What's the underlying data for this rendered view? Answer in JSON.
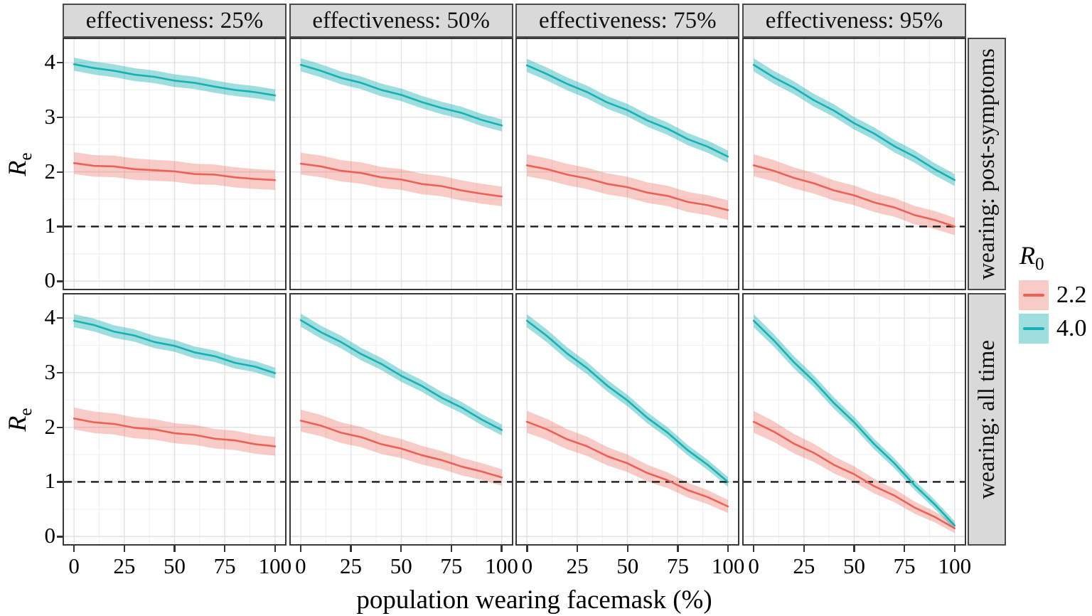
{
  "figure": {
    "y_axis_title": {
      "base": "R",
      "sub": "e"
    },
    "x_axis_title": "population wearing facemask (%)",
    "legend": {
      "title": {
        "base": "R",
        "sub": "0"
      },
      "entries": [
        {
          "label": "2.2",
          "line_color": "#ec6156",
          "fill_color": "rgba(236,97,86,0.33)"
        },
        {
          "label": "4.0",
          "line_color": "#17b1b3",
          "fill_color": "rgba(23,177,179,0.42)"
        }
      ]
    },
    "colors": {
      "strip_background": "#d9d9d9",
      "panel_border": "#383838",
      "major_grid": "#e2e2e2",
      "minor_grid": "#f1f1f1",
      "reference_line": "#1a1a1a"
    }
  },
  "chart_data": {
    "type": "line",
    "title": "",
    "xlabel": "population wearing facemask (%)",
    "ylabel": "Re",
    "legend_title": "R0",
    "legend_position": "right",
    "grid": true,
    "col_facets": [
      "effectiveness: 25%",
      "effectiveness: 50%",
      "effectiveness: 75%",
      "effectiveness: 95%"
    ],
    "row_facets": [
      "wearing: post-symptoms",
      "wearing: all time"
    ],
    "x": [
      0,
      10,
      20,
      30,
      40,
      50,
      60,
      70,
      80,
      90,
      100
    ],
    "x_ticks": [
      0,
      25,
      50,
      75,
      100
    ],
    "y_ticks": [
      0,
      1,
      2,
      3,
      4
    ],
    "x_minor_ticks": [
      12.5,
      37.5,
      62.5,
      87.5
    ],
    "y_minor_ticks": [
      0.5,
      1.5,
      2.5,
      3.5
    ],
    "xlim": [
      -5,
      105
    ],
    "ylim": [
      -0.14,
      4.43
    ],
    "reference_line_y": 1,
    "series_names": [
      "2.2",
      "4.0"
    ],
    "panels": [
      {
        "row": "wearing: post-symptoms",
        "col": "effectiveness: 25%",
        "series": [
          {
            "name": "2.2",
            "y": [
              2.16,
              2.11,
              2.1,
              2.05,
              2.03,
              2.01,
              1.96,
              1.95,
              1.9,
              1.87,
              1.85
            ],
            "band": [
              0.2,
              0.18
            ]
          },
          {
            "name": "4.0",
            "y": [
              3.97,
              3.9,
              3.85,
              3.78,
              3.74,
              3.67,
              3.63,
              3.56,
              3.5,
              3.46,
              3.4
            ],
            "band": [
              0.12,
              0.11
            ]
          }
        ]
      },
      {
        "row": "wearing: post-symptoms",
        "col": "effectiveness: 50%",
        "series": [
          {
            "name": "2.2",
            "y": [
              2.15,
              2.1,
              2.02,
              1.98,
              1.9,
              1.86,
              1.78,
              1.74,
              1.66,
              1.6,
              1.55
            ],
            "band": [
              0.2,
              0.18
            ]
          },
          {
            "name": "4.0",
            "y": [
              3.96,
              3.85,
              3.72,
              3.63,
              3.5,
              3.41,
              3.28,
              3.17,
              3.08,
              2.95,
              2.85
            ],
            "band": [
              0.12,
              0.11
            ]
          }
        ]
      },
      {
        "row": "wearing: post-symptoms",
        "col": "effectiveness: 75%",
        "series": [
          {
            "name": "2.2",
            "y": [
              2.12,
              2.05,
              1.95,
              1.88,
              1.78,
              1.72,
              1.62,
              1.56,
              1.45,
              1.39,
              1.3
            ],
            "band": [
              0.2,
              0.18
            ]
          },
          {
            "name": "4.0",
            "y": [
              3.95,
              3.79,
              3.61,
              3.46,
              3.27,
              3.13,
              2.94,
              2.79,
              2.6,
              2.46,
              2.28
            ],
            "band": [
              0.12,
              0.11
            ]
          }
        ]
      },
      {
        "row": "wearing: post-symptoms",
        "col": "effectiveness: 95%",
        "series": [
          {
            "name": "2.2",
            "y": [
              2.12,
              2.02,
              1.89,
              1.79,
              1.66,
              1.57,
              1.44,
              1.35,
              1.21,
              1.12,
              1.0
            ],
            "band": [
              0.2,
              0.16
            ]
          },
          {
            "name": "4.0",
            "y": [
              3.96,
              3.73,
              3.54,
              3.31,
              3.12,
              2.89,
              2.7,
              2.47,
              2.28,
              2.05,
              1.85
            ],
            "band": [
              0.12,
              0.11
            ]
          }
        ]
      },
      {
        "row": "wearing: all time",
        "col": "effectiveness: 25%",
        "series": [
          {
            "name": "2.2",
            "y": [
              2.16,
              2.09,
              2.06,
              1.99,
              1.96,
              1.89,
              1.86,
              1.79,
              1.76,
              1.69,
              1.65
            ],
            "band": [
              0.2,
              0.17
            ]
          },
          {
            "name": "4.0",
            "y": [
              3.95,
              3.87,
              3.75,
              3.68,
              3.56,
              3.49,
              3.37,
              3.3,
              3.18,
              3.11,
              2.99
            ],
            "band": [
              0.12,
              0.1
            ]
          }
        ]
      },
      {
        "row": "wearing: all time",
        "col": "effectiveness: 50%",
        "series": [
          {
            "name": "2.2",
            "y": [
              2.12,
              2.03,
              1.9,
              1.82,
              1.69,
              1.61,
              1.49,
              1.4,
              1.28,
              1.19,
              1.08
            ],
            "band": [
              0.2,
              0.15
            ]
          },
          {
            "name": "4.0",
            "y": [
              3.96,
              3.74,
              3.56,
              3.34,
              3.16,
              2.94,
              2.76,
              2.54,
              2.36,
              2.14,
              1.95
            ],
            "band": [
              0.12,
              0.1
            ]
          }
        ]
      },
      {
        "row": "wearing: all time",
        "col": "effectiveness: 75%",
        "series": [
          {
            "name": "2.2",
            "y": [
              2.1,
              1.96,
              1.78,
              1.65,
              1.47,
              1.34,
              1.16,
              1.03,
              0.85,
              0.72,
              0.55
            ],
            "band": [
              0.2,
              0.12
            ]
          },
          {
            "name": "4.0",
            "y": [
              3.95,
              3.67,
              3.35,
              3.08,
              2.76,
              2.49,
              2.17,
              1.9,
              1.58,
              1.31,
              1.0
            ],
            "band": [
              0.12,
              0.09
            ]
          }
        ]
      },
      {
        "row": "wearing: all time",
        "col": "effectiveness: 95%",
        "series": [
          {
            "name": "2.2",
            "y": [
              2.1,
              1.92,
              1.7,
              1.53,
              1.31,
              1.14,
              0.92,
              0.75,
              0.53,
              0.36,
              0.15
            ],
            "band": [
              0.2,
              0.09
            ]
          },
          {
            "name": "4.0",
            "y": [
              3.95,
              3.59,
              3.19,
              2.84,
              2.44,
              2.09,
              1.69,
              1.34,
              0.94,
              0.59,
              0.2
            ],
            "band": [
              0.12,
              0.08
            ]
          }
        ]
      }
    ]
  }
}
